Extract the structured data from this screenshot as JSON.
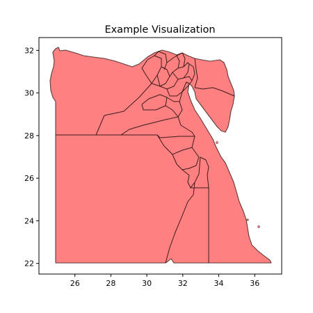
{
  "title": "Example Visualization",
  "colors": {
    "fill": "#ff8080",
    "edge": "#3b1a1a",
    "axes": "#000000",
    "background": "#ffffff"
  },
  "map_data": {
    "type": "choropleth-map",
    "region": "Egypt governorates",
    "uniform_fill": true,
    "xlim": [
      24.0,
      37.5
    ],
    "ylim": [
      21.5,
      32.6
    ],
    "xticks": [
      "26",
      "28",
      "30",
      "32",
      "34",
      "36"
    ],
    "yticks": [
      "22",
      "24",
      "26",
      "28",
      "30",
      "32"
    ]
  }
}
